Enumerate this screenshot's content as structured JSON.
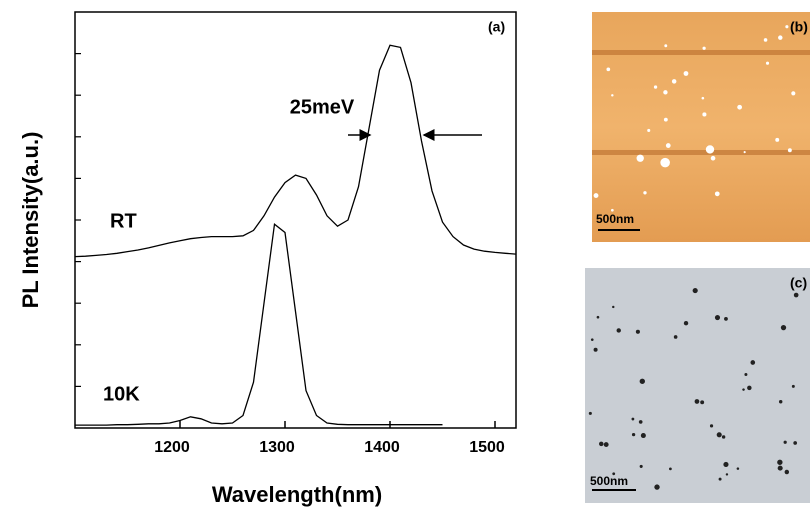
{
  "chart_data": {
    "type": "line",
    "xlabel": "Wavelength(nm)",
    "ylabel": "PL Intensity(a.u.)",
    "panel_label": "(a)",
    "annotations": [
      "25meV"
    ],
    "x": [
      1100,
      1110,
      1120,
      1130,
      1140,
      1150,
      1160,
      1170,
      1180,
      1190,
      1200,
      1210,
      1220,
      1230,
      1240,
      1250,
      1260,
      1270,
      1280,
      1290,
      1300,
      1310,
      1320,
      1330,
      1340,
      1350,
      1360,
      1370,
      1380,
      1390,
      1400,
      1410,
      1420,
      1430,
      1440,
      1450,
      1460,
      1470,
      1480,
      1490,
      1500,
      1510,
      1520
    ],
    "series": [
      {
        "name": "RT",
        "color": "#000000",
        "values": [
          4.12,
          4.13,
          4.15,
          4.17,
          4.2,
          4.24,
          4.28,
          4.33,
          4.39,
          4.45,
          4.5,
          4.55,
          4.58,
          4.6,
          4.6,
          4.6,
          4.62,
          4.75,
          5.1,
          5.55,
          5.9,
          6.08,
          6.0,
          5.6,
          5.1,
          4.85,
          5.0,
          5.8,
          7.2,
          8.6,
          9.2,
          9.15,
          8.3,
          6.9,
          5.7,
          4.95,
          4.6,
          4.4,
          4.3,
          4.25,
          4.22,
          4.2,
          4.18
        ]
      },
      {
        "name": "10K",
        "color": "#000000",
        "values": [
          0.07,
          0.07,
          0.07,
          0.07,
          0.08,
          0.08,
          0.09,
          0.1,
          0.1,
          0.12,
          0.18,
          0.27,
          0.22,
          0.12,
          0.1,
          0.12,
          0.3,
          1.1,
          3.0,
          4.9,
          4.7,
          2.8,
          0.9,
          0.3,
          0.12,
          0.09,
          0.08,
          0.08,
          0.08,
          0.08,
          0.08,
          0.08,
          0.08,
          0.08,
          0.08,
          0.08,
          null,
          null,
          null,
          null,
          null,
          null,
          null
        ]
      }
    ],
    "xlim": [
      1100,
      1520
    ],
    "xticks": [
      1200,
      1300,
      1400,
      1500
    ],
    "ylim": [
      0,
      10
    ],
    "yticks": [
      1,
      2,
      3,
      4,
      5,
      6,
      7,
      8,
      9
    ]
  },
  "images": [
    {
      "label": "(b)",
      "scale": "500nm"
    },
    {
      "label": "(c)",
      "scale": "500nm"
    }
  ]
}
